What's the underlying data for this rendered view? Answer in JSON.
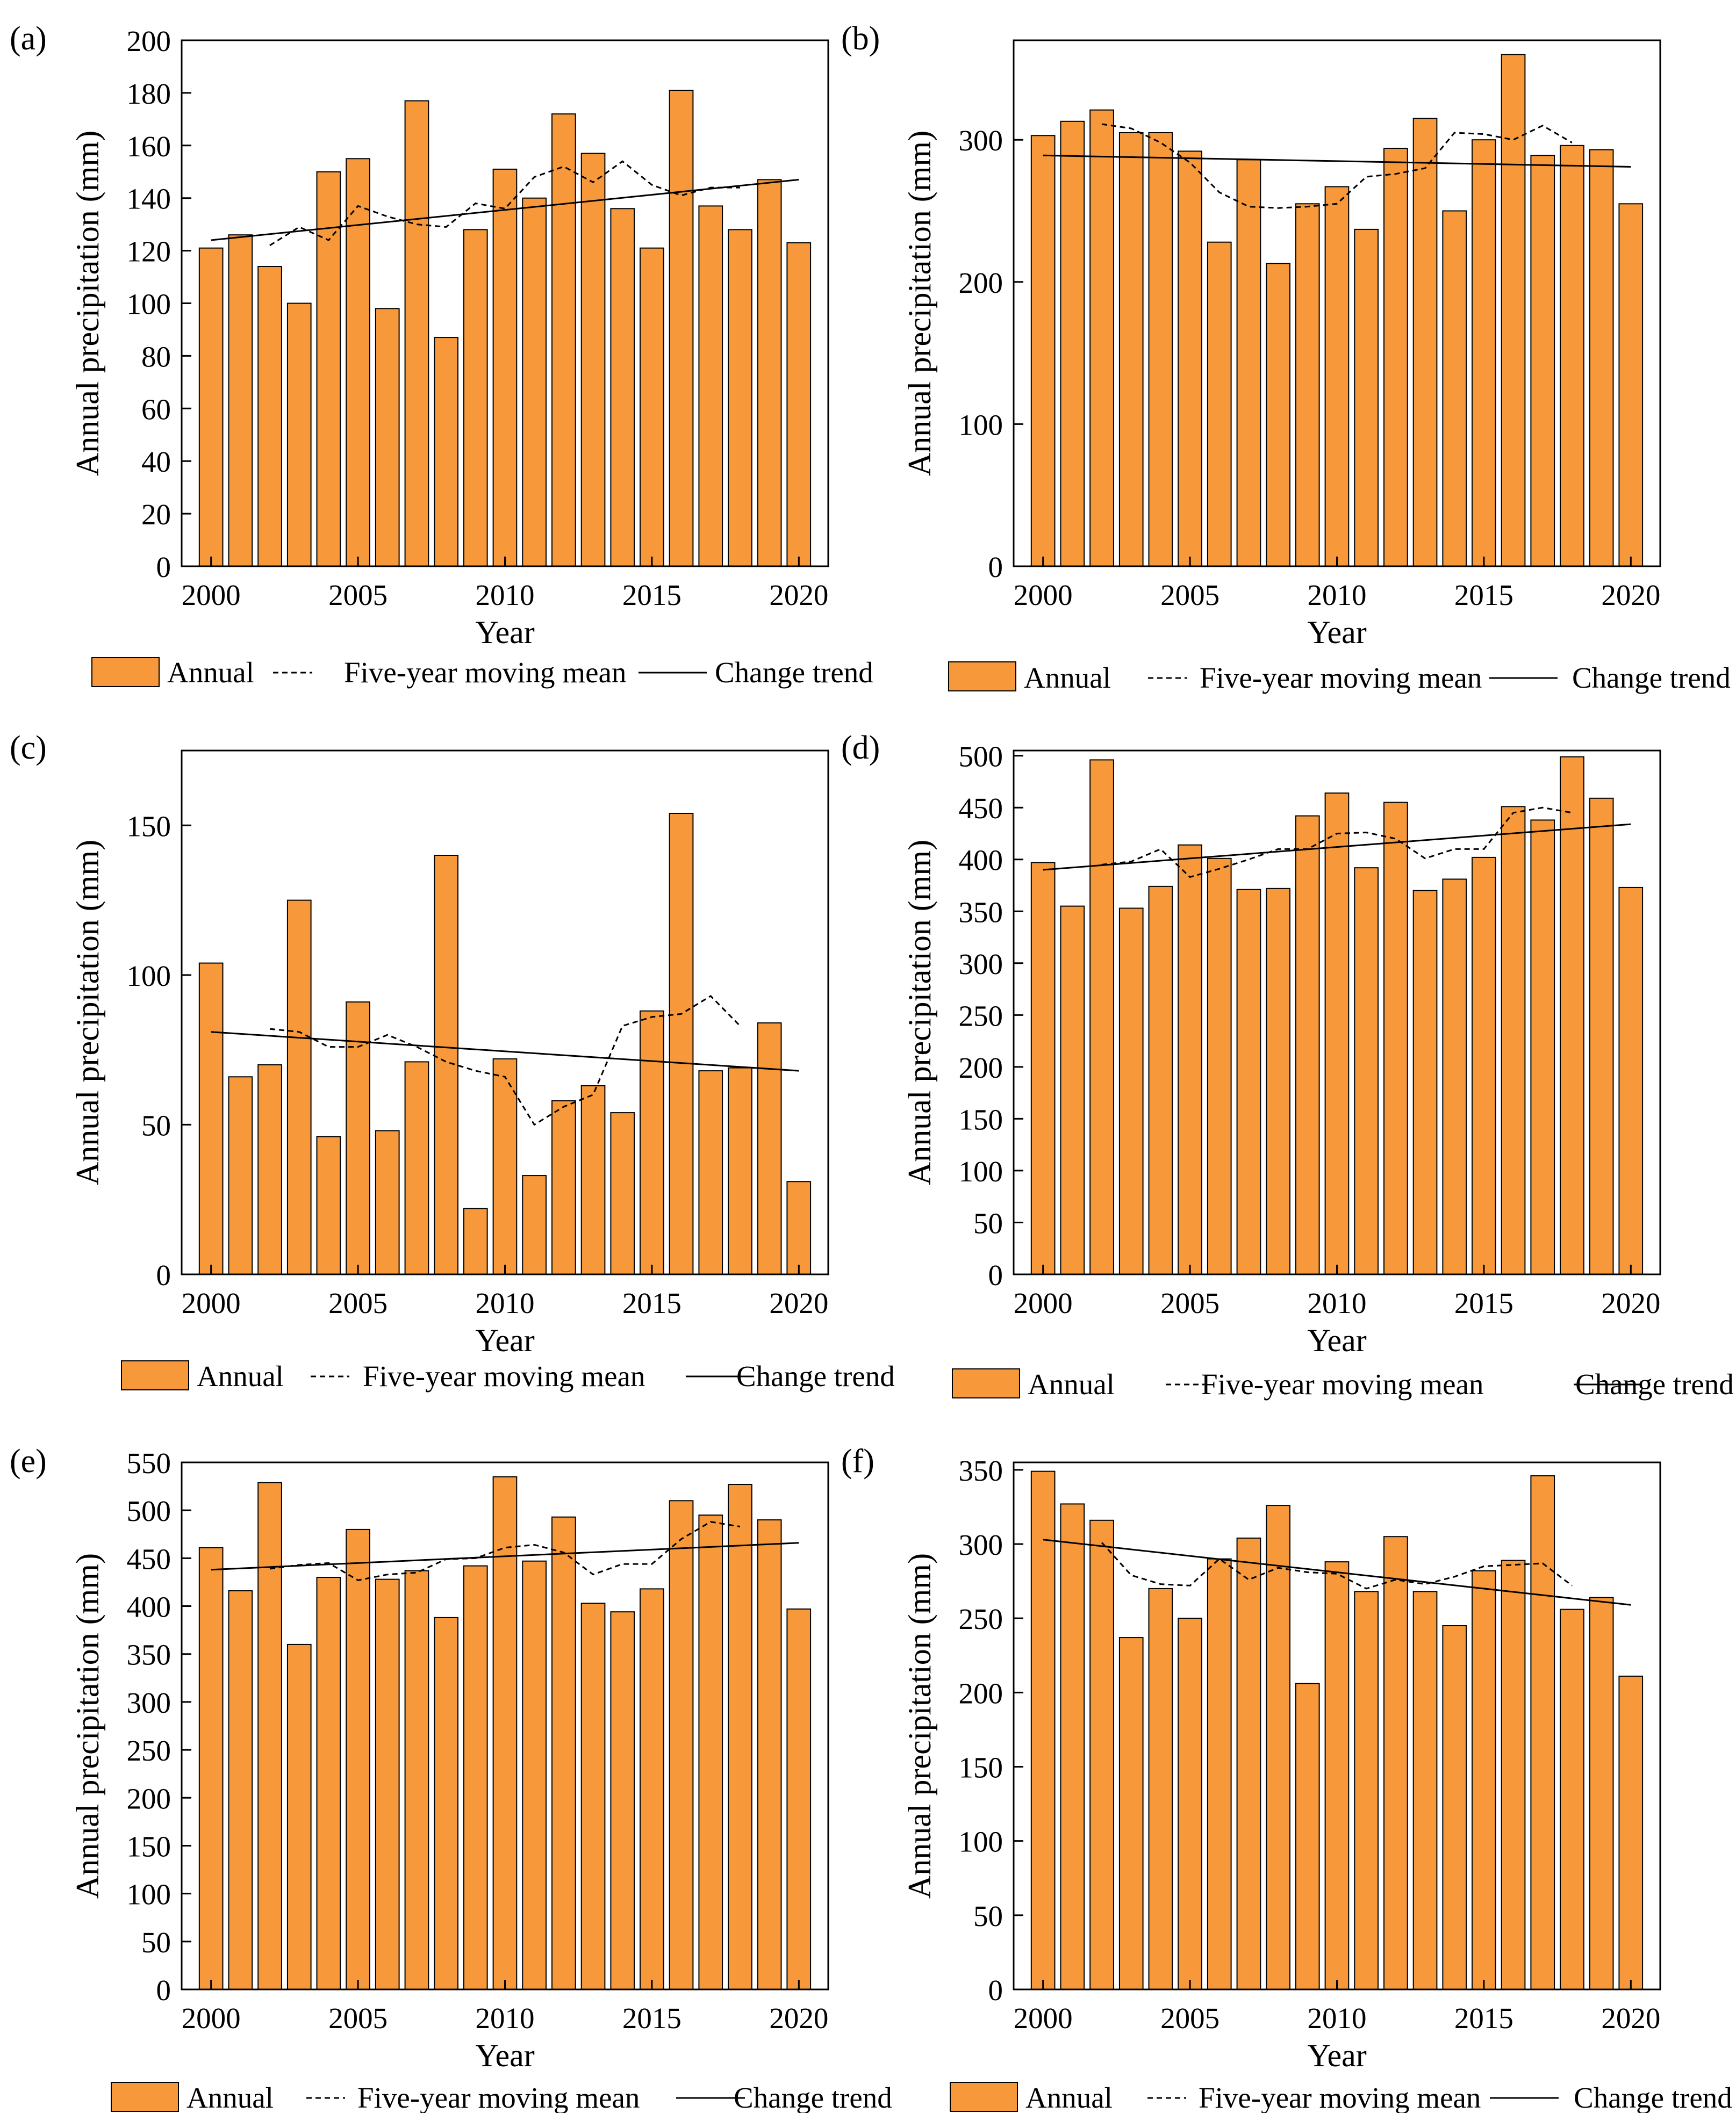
{
  "legend": {
    "annual": "Annual",
    "moving_mean": "Five-year moving mean",
    "trend": "Change trend"
  },
  "colors": {
    "bar_fill": "#F7993A",
    "bar_stroke": "#000000",
    "line": "#000000",
    "background": "#FFFFFF"
  },
  "chart_data": [
    {
      "type": "bar",
      "panel": "(a)",
      "xlabel": "Year",
      "ylabel": "Annual precipitation (mm)",
      "ylim": [
        0,
        200
      ],
      "yticks": [
        0,
        20,
        40,
        60,
        80,
        100,
        120,
        140,
        160,
        180,
        200
      ],
      "xticks": [
        2000,
        2005,
        2010,
        2015,
        2020
      ],
      "years": [
        2000,
        2001,
        2002,
        2003,
        2004,
        2005,
        2006,
        2007,
        2008,
        2009,
        2010,
        2011,
        2012,
        2013,
        2014,
        2015,
        2016,
        2017,
        2018,
        2019,
        2020
      ],
      "values": [
        121,
        126,
        114,
        100,
        150,
        155,
        98,
        177,
        87,
        128,
        151,
        140,
        172,
        157,
        136,
        121,
        181,
        137,
        128,
        147,
        123
      ],
      "moving_mean": {
        "years": [
          2002,
          2003,
          2004,
          2005,
          2006,
          2007,
          2008,
          2009,
          2010,
          2011,
          2012,
          2013,
          2014,
          2015,
          2016,
          2017,
          2018
        ],
        "values": [
          122,
          129,
          124,
          137,
          133,
          130,
          129,
          138,
          136,
          148,
          152,
          146,
          154,
          145,
          141,
          144,
          144
        ]
      },
      "trend": {
        "x": [
          2000,
          2020
        ],
        "y": [
          124,
          147
        ]
      }
    },
    {
      "type": "bar",
      "panel": "(b)",
      "xlabel": "Year",
      "ylabel": "Annual precipitation (mm)",
      "ylim": [
        0,
        370
      ],
      "yticks": [
        0,
        100,
        200,
        300
      ],
      "xticks": [
        2000,
        2005,
        2010,
        2015,
        2020
      ],
      "years": [
        2000,
        2001,
        2002,
        2003,
        2004,
        2005,
        2006,
        2007,
        2008,
        2009,
        2010,
        2011,
        2012,
        2013,
        2014,
        2015,
        2016,
        2017,
        2018,
        2019,
        2020
      ],
      "values": [
        303,
        313,
        321,
        305,
        305,
        292,
        228,
        286,
        213,
        255,
        267,
        237,
        294,
        315,
        250,
        300,
        360,
        289,
        296,
        293,
        255
      ],
      "moving_mean": {
        "years": [
          2002,
          2003,
          2004,
          2005,
          2006,
          2007,
          2008,
          2009,
          2010,
          2011,
          2012,
          2013,
          2014,
          2015,
          2016,
          2017,
          2018
        ],
        "values": [
          311,
          308,
          298,
          284,
          263,
          253,
          252,
          253,
          255,
          274,
          276,
          280,
          305,
          304,
          300,
          310,
          298
        ]
      },
      "trend": {
        "x": [
          2000,
          2020
        ],
        "y": [
          289,
          281
        ]
      }
    },
    {
      "type": "bar",
      "panel": "(c)",
      "xlabel": "Year",
      "ylabel": "Annual precipitation (mm)",
      "ylim": [
        0,
        175
      ],
      "yticks": [
        0,
        50,
        100,
        150
      ],
      "xticks": [
        2000,
        2005,
        2010,
        2015,
        2020
      ],
      "years": [
        2000,
        2001,
        2002,
        2003,
        2004,
        2005,
        2006,
        2007,
        2008,
        2009,
        2010,
        2011,
        2012,
        2013,
        2014,
        2015,
        2016,
        2017,
        2018,
        2019,
        2020
      ],
      "values": [
        104,
        66,
        70,
        125,
        46,
        91,
        48,
        71,
        140,
        22,
        72,
        33,
        58,
        63,
        54,
        88,
        154,
        68,
        69,
        84,
        31
      ],
      "moving_mean": {
        "years": [
          2002,
          2003,
          2004,
          2005,
          2006,
          2007,
          2008,
          2009,
          2010,
          2011,
          2012,
          2013,
          2014,
          2015,
          2016,
          2017,
          2018
        ],
        "values": [
          82,
          81,
          76,
          76,
          80,
          76,
          71,
          68,
          66,
          50,
          56,
          60,
          83,
          86,
          87,
          93,
          83
        ]
      },
      "trend": {
        "x": [
          2000,
          2020
        ],
        "y": [
          81,
          68
        ]
      }
    },
    {
      "type": "bar",
      "panel": "(d)",
      "xlabel": "Year",
      "ylabel": "Annual precipitation (mm)",
      "ylim": [
        0,
        505
      ],
      "yticks": [
        0,
        50,
        100,
        150,
        200,
        250,
        300,
        350,
        400,
        450,
        500
      ],
      "xticks": [
        2000,
        2005,
        2010,
        2015,
        2020
      ],
      "years": [
        2000,
        2001,
        2002,
        2003,
        2004,
        2005,
        2006,
        2007,
        2008,
        2009,
        2010,
        2011,
        2012,
        2013,
        2014,
        2015,
        2016,
        2017,
        2018,
        2019,
        2020
      ],
      "values": [
        397,
        355,
        496,
        353,
        374,
        414,
        401,
        371,
        372,
        442,
        464,
        392,
        455,
        370,
        381,
        402,
        451,
        438,
        499,
        459,
        373
      ],
      "moving_mean": {
        "years": [
          2002,
          2003,
          2004,
          2005,
          2006,
          2007,
          2008,
          2009,
          2010,
          2011,
          2012,
          2013,
          2014,
          2015,
          2016,
          2017,
          2018
        ],
        "values": [
          395,
          398,
          410,
          383,
          391,
          400,
          410,
          410,
          425,
          426,
          420,
          401,
          410,
          410,
          445,
          450,
          445
        ]
      },
      "trend": {
        "x": [
          2000,
          2020
        ],
        "y": [
          390,
          434
        ]
      }
    },
    {
      "type": "bar",
      "panel": "(e)",
      "xlabel": "Year",
      "ylabel": "Annual precipitation (mm)",
      "ylim": [
        0,
        550
      ],
      "yticks": [
        0,
        50,
        100,
        150,
        200,
        250,
        300,
        350,
        400,
        450,
        500,
        550
      ],
      "xticks": [
        2000,
        2005,
        2010,
        2015,
        2020
      ],
      "years": [
        2000,
        2001,
        2002,
        2003,
        2004,
        2005,
        2006,
        2007,
        2008,
        2009,
        2010,
        2011,
        2012,
        2013,
        2014,
        2015,
        2016,
        2017,
        2018,
        2019,
        2020
      ],
      "values": [
        461,
        416,
        529,
        360,
        430,
        480,
        428,
        437,
        388,
        442,
        535,
        447,
        493,
        403,
        394,
        418,
        510,
        495,
        527,
        490,
        397
      ],
      "moving_mean": {
        "years": [
          2002,
          2003,
          2004,
          2005,
          2006,
          2007,
          2008,
          2009,
          2010,
          2011,
          2012,
          2013,
          2014,
          2015,
          2016,
          2017,
          2018
        ],
        "values": [
          439,
          443,
          445,
          427,
          433,
          435,
          449,
          450,
          461,
          464,
          456,
          433,
          444,
          444,
          470,
          488,
          483
        ]
      },
      "trend": {
        "x": [
          2000,
          2020
        ],
        "y": [
          438,
          466
        ]
      }
    },
    {
      "type": "bar",
      "panel": "(f)",
      "xlabel": "Year",
      "ylabel": "Annual precipitation (mm)",
      "ylim": [
        0,
        355
      ],
      "yticks": [
        0,
        50,
        100,
        150,
        200,
        250,
        300,
        350
      ],
      "xticks": [
        2000,
        2005,
        2010,
        2015,
        2020
      ],
      "years": [
        2000,
        2001,
        2002,
        2003,
        2004,
        2005,
        2006,
        2007,
        2008,
        2009,
        2010,
        2011,
        2012,
        2013,
        2014,
        2015,
        2016,
        2017,
        2018,
        2019,
        2020
      ],
      "values": [
        349,
        327,
        316,
        237,
        270,
        250,
        290,
        304,
        326,
        206,
        288,
        268,
        305,
        268,
        245,
        282,
        289,
        346,
        256,
        264,
        211
      ],
      "moving_mean": {
        "years": [
          2002,
          2003,
          2004,
          2005,
          2006,
          2007,
          2008,
          2009,
          2010,
          2011,
          2012,
          2013,
          2014,
          2015,
          2016,
          2017,
          2018
        ],
        "values": [
          301,
          279,
          273,
          272,
          290,
          276,
          284,
          281,
          280,
          270,
          276,
          273,
          278,
          285,
          286,
          287,
          272
        ]
      },
      "trend": {
        "x": [
          2000,
          2020
        ],
        "y": [
          303,
          259
        ]
      }
    }
  ]
}
